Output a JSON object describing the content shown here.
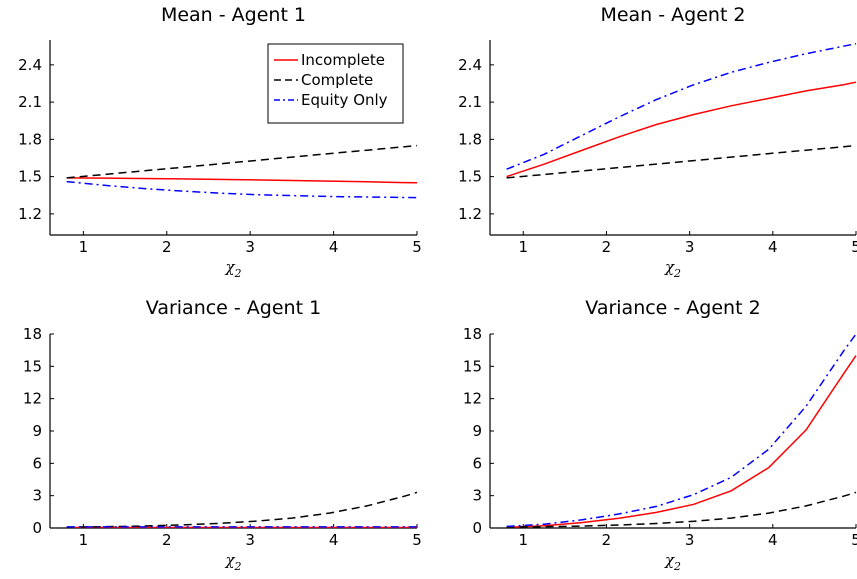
{
  "chart_data": [
    {
      "type": "line",
      "title": "Mean - Agent 1",
      "xlabel": "χ",
      "xlabel_sub": "2",
      "xlim": [
        0.6,
        5.0
      ],
      "ylim": [
        1.03,
        2.6
      ],
      "xticks": [
        1,
        2,
        3,
        4,
        5
      ],
      "yticks": [
        1.2,
        1.5,
        1.8,
        2.1,
        2.4
      ],
      "ytick_labels": [
        "1.2",
        "1.5",
        "1.8",
        "2.1",
        "2.4"
      ],
      "legend": "top-right",
      "series": [
        {
          "name": "Incomplete",
          "color": "#ff0000",
          "dash": "solid",
          "x": [
            0.8,
            1.25,
            1.7,
            2.15,
            2.6,
            3.05,
            3.5,
            3.95,
            4.4,
            4.85,
            5.0
          ],
          "y": [
            1.49,
            1.488,
            1.485,
            1.482,
            1.478,
            1.474,
            1.469,
            1.464,
            1.458,
            1.452,
            1.45
          ]
        },
        {
          "name": "Complete",
          "color": "#000000",
          "dash": "dashed",
          "x": [
            0.8,
            1.25,
            1.7,
            2.15,
            2.6,
            3.05,
            3.5,
            3.95,
            4.4,
            4.85,
            5.0
          ],
          "y": [
            1.49,
            1.517,
            1.545,
            1.573,
            1.601,
            1.629,
            1.657,
            1.685,
            1.713,
            1.741,
            1.75
          ]
        },
        {
          "name": "Equity Only",
          "color": "#0000ff",
          "dash": "dashdot",
          "x": [
            0.8,
            1.25,
            1.7,
            2.15,
            2.6,
            3.05,
            3.5,
            3.95,
            4.4,
            4.85,
            5.0
          ],
          "y": [
            1.46,
            1.43,
            1.405,
            1.385,
            1.368,
            1.355,
            1.347,
            1.34,
            1.336,
            1.332,
            1.33
          ]
        }
      ]
    },
    {
      "type": "line",
      "title": "Mean - Agent 2",
      "xlabel": "χ",
      "xlabel_sub": "2",
      "xlim": [
        0.6,
        5.0
      ],
      "ylim": [
        1.03,
        2.6
      ],
      "xticks": [
        1,
        2,
        3,
        4,
        5
      ],
      "yticks": [
        1.2,
        1.5,
        1.8,
        2.1,
        2.4
      ],
      "ytick_labels": [
        "1.2",
        "1.5",
        "1.8",
        "2.1",
        "2.4"
      ],
      "series": [
        {
          "name": "Incomplete",
          "color": "#ff0000",
          "dash": "solid",
          "x": [
            0.8,
            1.25,
            1.7,
            2.15,
            2.6,
            3.05,
            3.5,
            3.95,
            4.4,
            4.85,
            5.0
          ],
          "y": [
            1.5,
            1.6,
            1.71,
            1.82,
            1.92,
            2.0,
            2.07,
            2.13,
            2.19,
            2.24,
            2.26
          ]
        },
        {
          "name": "Complete",
          "color": "#000000",
          "dash": "dashed",
          "x": [
            0.8,
            1.25,
            1.7,
            2.15,
            2.6,
            3.05,
            3.5,
            3.95,
            4.4,
            4.85,
            5.0
          ],
          "y": [
            1.49,
            1.517,
            1.545,
            1.573,
            1.601,
            1.629,
            1.657,
            1.685,
            1.713,
            1.741,
            1.75
          ]
        },
        {
          "name": "Equity Only",
          "color": "#0000ff",
          "dash": "dashdot",
          "x": [
            0.8,
            1.25,
            1.7,
            2.15,
            2.6,
            3.05,
            3.5,
            3.95,
            4.4,
            4.85,
            5.0
          ],
          "y": [
            1.56,
            1.68,
            1.83,
            1.98,
            2.12,
            2.24,
            2.34,
            2.42,
            2.49,
            2.55,
            2.57
          ]
        }
      ]
    },
    {
      "type": "line",
      "title": "Variance - Agent 1",
      "xlabel": "χ",
      "xlabel_sub": "2",
      "xlim": [
        0.6,
        5.0
      ],
      "ylim": [
        0,
        18
      ],
      "xticks": [
        1,
        2,
        3,
        4,
        5
      ],
      "yticks": [
        0,
        3,
        6,
        9,
        12,
        15,
        18
      ],
      "ytick_labels": [
        "0",
        "3",
        "6",
        "9",
        "12",
        "15",
        "18"
      ],
      "series": [
        {
          "name": "Incomplete",
          "color": "#ff0000",
          "dash": "solid",
          "x": [
            0.8,
            1.25,
            1.7,
            2.15,
            2.6,
            3.05,
            3.5,
            3.95,
            4.4,
            4.85,
            5.0
          ],
          "y": [
            0.05,
            0.05,
            0.05,
            0.05,
            0.05,
            0.05,
            0.05,
            0.05,
            0.05,
            0.05,
            0.05
          ]
        },
        {
          "name": "Complete",
          "color": "#000000",
          "dash": "dashed",
          "x": [
            0.8,
            1.25,
            1.7,
            2.15,
            2.6,
            3.05,
            3.5,
            3.95,
            4.4,
            4.85,
            5.0
          ],
          "y": [
            0.07,
            0.12,
            0.18,
            0.28,
            0.42,
            0.62,
            0.92,
            1.38,
            2.05,
            2.95,
            3.3
          ]
        },
        {
          "name": "Equity Only",
          "color": "#0000ff",
          "dash": "dashdot",
          "x": [
            0.8,
            1.25,
            1.7,
            2.15,
            2.6,
            3.05,
            3.5,
            3.95,
            4.4,
            4.85,
            5.0
          ],
          "y": [
            0.1,
            0.1,
            0.1,
            0.1,
            0.1,
            0.1,
            0.1,
            0.1,
            0.1,
            0.1,
            0.1
          ]
        }
      ]
    },
    {
      "type": "line",
      "title": "Variance - Agent 2",
      "xlabel": "χ",
      "xlabel_sub": "2",
      "xlim": [
        0.6,
        5.0
      ],
      "ylim": [
        0,
        18
      ],
      "xticks": [
        1,
        2,
        3,
        4,
        5
      ],
      "yticks": [
        0,
        3,
        6,
        9,
        12,
        15,
        18
      ],
      "ytick_labels": [
        "0",
        "3",
        "6",
        "9",
        "12",
        "15",
        "18"
      ],
      "series": [
        {
          "name": "Incomplete",
          "color": "#ff0000",
          "dash": "solid",
          "x": [
            0.8,
            1.25,
            1.7,
            2.15,
            2.6,
            3.05,
            3.5,
            3.95,
            4.4,
            4.85,
            5.0
          ],
          "y": [
            0.05,
            0.2,
            0.5,
            0.9,
            1.45,
            2.2,
            3.45,
            5.6,
            9.1,
            14.3,
            16.0
          ]
        },
        {
          "name": "Complete",
          "color": "#000000",
          "dash": "dashed",
          "x": [
            0.8,
            1.25,
            1.7,
            2.15,
            2.6,
            3.05,
            3.5,
            3.95,
            4.4,
            4.85,
            5.0
          ],
          "y": [
            0.07,
            0.12,
            0.18,
            0.28,
            0.42,
            0.62,
            0.92,
            1.38,
            2.05,
            2.95,
            3.3
          ]
        },
        {
          "name": "Equity Only",
          "color": "#0000ff",
          "dash": "dashdot",
          "x": [
            0.8,
            1.25,
            1.7,
            2.15,
            2.6,
            3.05,
            3.5,
            3.95,
            4.4,
            4.85,
            5.0
          ],
          "y": [
            0.15,
            0.35,
            0.75,
            1.3,
            2.0,
            3.1,
            4.7,
            7.3,
            11.3,
            16.4,
            18.0
          ]
        }
      ]
    }
  ]
}
